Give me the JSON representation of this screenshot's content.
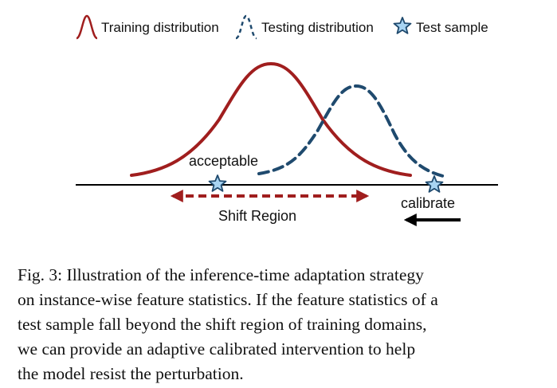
{
  "legend": {
    "training": "Training distribution",
    "testing": "Testing distribution",
    "test_sample": "Test sample"
  },
  "labels": {
    "acceptable": "acceptable",
    "shift_region": "Shift Region",
    "calibrate": "calibrate"
  },
  "caption": {
    "lines": [
      "Fig. 3: Illustration of the inference-time adaptation strategy",
      "on instance-wise feature statistics. If the feature statistics of a",
      "test sample fall beyond the shift region of training domains,",
      "we can provide an adaptive calibrated intervention to help",
      "the model resist the perturbation."
    ]
  },
  "colors": {
    "training": "#a01e1e",
    "testing": "#1f4a6e",
    "star_fill": "#a8d4f2",
    "star_stroke": "#1f4a6e",
    "axis": "#000000"
  }
}
